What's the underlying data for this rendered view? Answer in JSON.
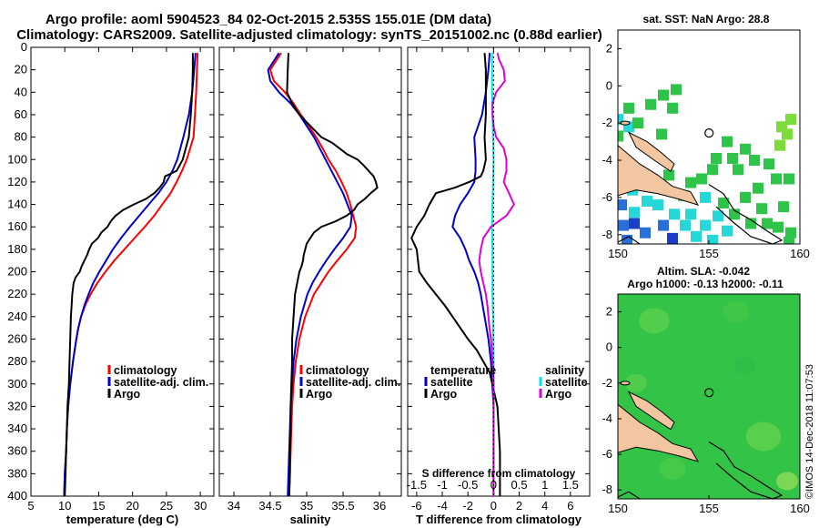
{
  "header": {
    "line1": "Argo profile: aoml 5904523_84 02-Oct-2015 2.535S 155.01E (DM data)",
    "line2": "Climatology: CARS2009. Satellite-adjusted climatology: synTS_20151002.nc (0.88d earlier)"
  },
  "colors": {
    "climatology": "#ff0000",
    "satellite": "#0000cc",
    "argo": "#000000",
    "sal_satellite": "#00e5e5",
    "sal_argo": "#dd00dd"
  },
  "chart_data": [
    {
      "type": "line",
      "name": "temperature",
      "xlabel": "temperature (deg C)",
      "ylabel": "depth",
      "xlim": [
        5,
        32
      ],
      "ylim": [
        0,
        400
      ],
      "xticks": [
        5,
        10,
        15,
        20,
        25,
        30
      ],
      "yticks": [
        0,
        20,
        40,
        60,
        80,
        100,
        120,
        140,
        160,
        180,
        200,
        220,
        240,
        260,
        280,
        300,
        320,
        340,
        360,
        380,
        400
      ],
      "legend": [
        "climatology",
        "satellite-adj. clim.",
        "Argo"
      ],
      "series": [
        {
          "name": "climatology",
          "depth": [
            5,
            20,
            40,
            60,
            80,
            100,
            110,
            120,
            130,
            140,
            150,
            160,
            170,
            180,
            190,
            200,
            210,
            220,
            230,
            240,
            250,
            260,
            280,
            300,
            320,
            340,
            360,
            380,
            400
          ],
          "values": [
            29.6,
            29.5,
            29.4,
            29.2,
            29.0,
            28.0,
            27.3,
            26.5,
            25.6,
            24.4,
            23.2,
            21.8,
            20.3,
            18.8,
            17.3,
            16.0,
            14.8,
            13.8,
            13.0,
            12.4,
            12.0,
            11.7,
            11.2,
            10.8,
            10.5,
            10.3,
            10.2,
            10.0,
            9.9
          ]
        },
        {
          "name": "satellite-adj. clim.",
          "depth": [
            5,
            20,
            40,
            60,
            80,
            100,
            110,
            120,
            130,
            140,
            150,
            160,
            170,
            180,
            190,
            200,
            210,
            220,
            230,
            240,
            250,
            260,
            280,
            300,
            320,
            340,
            360,
            380,
            400
          ],
          "values": [
            29.3,
            29.1,
            28.8,
            28.3,
            27.5,
            26.6,
            25.9,
            25.0,
            23.8,
            22.4,
            21.0,
            19.6,
            18.3,
            17.1,
            16.1,
            15.1,
            14.2,
            13.5,
            12.9,
            12.4,
            12.0,
            11.7,
            11.2,
            10.8,
            10.5,
            10.3,
            10.2,
            10.0,
            9.9
          ]
        },
        {
          "name": "Argo",
          "depth": [
            5,
            20,
            40,
            60,
            80,
            100,
            110,
            115,
            120,
            125,
            130,
            135,
            140,
            145,
            150,
            155,
            160,
            165,
            170,
            175,
            180,
            185,
            190,
            195,
            200,
            205,
            210,
            220,
            230,
            240,
            260,
            280,
            300,
            320,
            340,
            360,
            380,
            400
          ],
          "values": [
            28.9,
            28.9,
            28.8,
            28.6,
            28.3,
            27.4,
            26.5,
            24.8,
            24.6,
            24.0,
            23.2,
            22.0,
            20.2,
            18.6,
            17.5,
            16.8,
            16.3,
            15.4,
            14.9,
            14.0,
            13.6,
            13.3,
            12.9,
            12.5,
            12.2,
            11.6,
            11.3,
            11.1,
            11.0,
            10.9,
            10.8,
            10.7,
            10.6,
            10.4,
            10.3,
            10.2,
            10.1,
            10.0
          ]
        }
      ]
    },
    {
      "type": "line",
      "name": "salinity",
      "xlabel": "salinity",
      "xlim": [
        33.8,
        36.3
      ],
      "ylim": [
        0,
        400
      ],
      "xticks": [
        34,
        34.5,
        35,
        35.5,
        36
      ],
      "legend": [
        "climatology",
        "satellite-adj. clim.",
        "Argo"
      ],
      "series": [
        {
          "name": "climatology",
          "depth": [
            5,
            15,
            20,
            30,
            40,
            50,
            60,
            70,
            80,
            90,
            100,
            110,
            120,
            130,
            140,
            150,
            160,
            170,
            180,
            190,
            200,
            210,
            220,
            240,
            260,
            280,
            300,
            320,
            340,
            360,
            380,
            400
          ],
          "values": [
            34.65,
            34.55,
            34.5,
            34.55,
            34.7,
            34.82,
            34.92,
            35.03,
            35.13,
            35.22,
            35.3,
            35.4,
            35.48,
            35.55,
            35.6,
            35.64,
            35.68,
            35.66,
            35.55,
            35.42,
            35.3,
            35.2,
            35.1,
            34.98,
            34.9,
            34.85,
            34.82,
            34.8,
            34.79,
            34.78,
            34.77,
            34.76
          ]
        },
        {
          "name": "satellite-adj. clim.",
          "depth": [
            5,
            15,
            20,
            30,
            40,
            50,
            60,
            70,
            80,
            90,
            100,
            110,
            120,
            130,
            140,
            150,
            160,
            170,
            180,
            190,
            200,
            210,
            220,
            240,
            260,
            280,
            300,
            320,
            340,
            360,
            380,
            400
          ],
          "values": [
            34.62,
            34.52,
            34.47,
            34.5,
            34.62,
            34.78,
            34.9,
            35.0,
            35.1,
            35.18,
            35.26,
            35.34,
            35.42,
            35.5,
            35.56,
            35.62,
            35.6,
            35.5,
            35.38,
            35.27,
            35.17,
            35.08,
            35.01,
            34.92,
            34.86,
            34.82,
            34.8,
            34.78,
            34.77,
            34.76,
            34.75,
            34.74
          ]
        },
        {
          "name": "Argo",
          "depth": [
            5,
            20,
            40,
            50,
            60,
            70,
            80,
            85,
            90,
            95,
            100,
            105,
            110,
            115,
            120,
            125,
            130,
            135,
            140,
            145,
            150,
            155,
            160,
            165,
            170,
            175,
            180,
            185,
            190,
            195,
            200,
            210,
            220,
            230,
            240,
            250,
            260,
            280,
            300,
            320,
            340,
            360,
            380,
            400
          ],
          "values": [
            34.75,
            34.74,
            34.73,
            34.8,
            34.9,
            35.05,
            35.2,
            35.35,
            35.45,
            35.55,
            35.7,
            35.78,
            35.85,
            35.92,
            35.95,
            35.97,
            35.88,
            35.8,
            35.7,
            35.65,
            35.55,
            35.4,
            35.2,
            35.1,
            35.05,
            35.0,
            34.98,
            34.96,
            34.95,
            34.93,
            34.9,
            34.87,
            34.84,
            34.83,
            34.82,
            34.81,
            34.8,
            34.8,
            34.79,
            34.78,
            34.78,
            34.77,
            34.77,
            34.76
          ]
        }
      ]
    },
    {
      "type": "line",
      "name": "difference",
      "xlabel": "T difference from climatology",
      "x2label": "S difference from climatology",
      "xlim": [
        -6.7,
        7.5
      ],
      "ylim": [
        0,
        400
      ],
      "xticks": [
        -6,
        -4,
        -2,
        0,
        2,
        4,
        6
      ],
      "x2ticks": [
        "-1.5",
        "-1",
        "-0.5",
        "0",
        "0.5",
        "1",
        "1.5"
      ],
      "legend_temperature": [
        "temperature",
        "satellite",
        "Argo"
      ],
      "legend_salinity": [
        "salinity",
        "satellite",
        "Argo"
      ],
      "series": [
        {
          "name": "temperature satellite",
          "depth": [
            5,
            20,
            40,
            60,
            80,
            100,
            110,
            120,
            130,
            140,
            150,
            160,
            170,
            180,
            190,
            200,
            210,
            220,
            240,
            260,
            280,
            300,
            320,
            340,
            360,
            380,
            400
          ],
          "values": [
            -0.3,
            -0.4,
            -0.6,
            -0.9,
            -1.5,
            -1.4,
            -1.4,
            -1.5,
            -2.0,
            -2.6,
            -3.0,
            -3.2,
            -2.6,
            -2.2,
            -1.9,
            -1.5,
            -1.2,
            -1.0,
            -0.7,
            -0.4,
            -0.2,
            -0.1,
            0.0,
            0.0,
            0.0,
            0.0,
            0.0
          ]
        },
        {
          "name": "temperature Argo",
          "depth": [
            5,
            20,
            40,
            60,
            80,
            100,
            110,
            115,
            120,
            125,
            130,
            140,
            150,
            160,
            170,
            180,
            190,
            200,
            210,
            220,
            230,
            240,
            250,
            260,
            270,
            280,
            290,
            300,
            320,
            340,
            360,
            380,
            400
          ],
          "values": [
            -0.7,
            -0.6,
            -0.6,
            -0.6,
            -0.7,
            -0.6,
            -0.8,
            -1.0,
            -1.9,
            -3.0,
            -4.5,
            -5.0,
            -5.4,
            -6.0,
            -6.4,
            -6.0,
            -5.9,
            -5.8,
            -5.2,
            -4.5,
            -3.8,
            -3.2,
            -2.6,
            -2.0,
            -1.3,
            -0.8,
            -0.3,
            -0.1,
            0.3,
            0.4,
            0.5,
            0.5,
            0.5
          ]
        },
        {
          "name": "salinity satellite",
          "depth": [
            5,
            20,
            40,
            60,
            80,
            100,
            120,
            140,
            160,
            180,
            200,
            220,
            240,
            260,
            280,
            300,
            320,
            340,
            360,
            380,
            400
          ],
          "values": [
            -0.03,
            -0.03,
            -0.03,
            -0.02,
            -0.01,
            0.0,
            -0.01,
            -0.02,
            -0.03,
            -0.02,
            -0.02,
            -0.02,
            -0.01,
            -0.01,
            0.0,
            0.0,
            0.0,
            0.0,
            0.0,
            0.0,
            0.0
          ]
        },
        {
          "name": "salinity Argo",
          "depth": [
            5,
            10,
            20,
            30,
            40,
            50,
            60,
            70,
            80,
            90,
            100,
            110,
            120,
            130,
            140,
            150,
            160,
            170,
            180,
            190,
            200,
            210,
            220,
            230,
            240,
            250,
            260,
            280,
            300,
            320,
            340,
            360,
            380,
            400
          ],
          "values": [
            0.08,
            0.1,
            0.2,
            0.22,
            0.05,
            -0.02,
            -0.02,
            0.0,
            0.05,
            0.2,
            0.25,
            0.25,
            0.2,
            0.3,
            0.4,
            0.25,
            -0.05,
            -0.2,
            -0.25,
            -0.28,
            -0.25,
            -0.2,
            -0.15,
            -0.12,
            -0.1,
            -0.08,
            -0.05,
            -0.02,
            0.0,
            0.0,
            0.0,
            0.0,
            0.0,
            0.0
          ]
        }
      ]
    },
    {
      "type": "heatmap",
      "name": "sst-map",
      "title": "sat. SST: NaN Argo: 28.8",
      "xticks": [
        150,
        155,
        160
      ],
      "yticks": [
        2,
        0,
        -2,
        -4,
        -6,
        -8
      ],
      "xlim": [
        150,
        160
      ],
      "ylim": [
        -8.5,
        3
      ],
      "argo_position": [
        155.01,
        -2.535
      ]
    },
    {
      "type": "heatmap",
      "name": "sla-map",
      "title": "Altim. SLA: -0.042",
      "subtitle": "Argo h1000: -0.13 h2000: -0.11",
      "xticks": [
        150,
        155,
        160
      ],
      "yticks": [
        2,
        0,
        -2,
        -4,
        -6,
        -8
      ],
      "xlim": [
        150,
        160
      ],
      "ylim": [
        -8.5,
        3
      ],
      "argo_position": [
        155.01,
        -2.535
      ]
    }
  ],
  "stamp": "©IMOS 14-Dec-2018 11:07:53"
}
